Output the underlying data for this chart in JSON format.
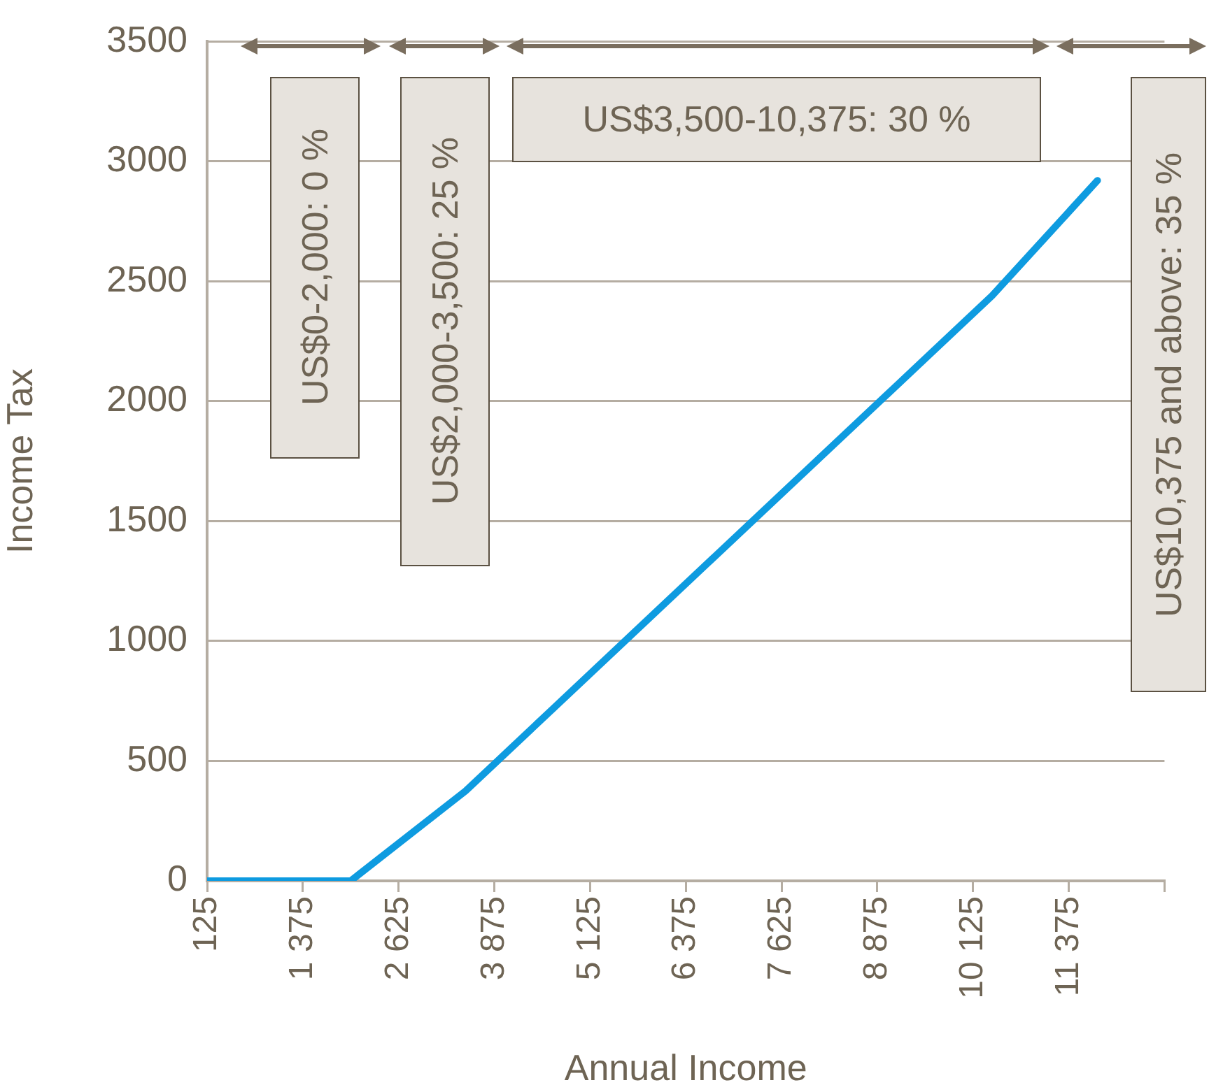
{
  "chart_data": {
    "type": "line",
    "xlabel": "Annual Income",
    "ylabel": "Income Tax",
    "x": [
      125,
      2000,
      3500,
      10375,
      11750
    ],
    "series": [
      {
        "color": "#0e9be0",
        "values": [
          0,
          0,
          375,
          2440,
          2920
        ]
      }
    ],
    "xlim": [
      125,
      12625
    ],
    "xticks": [
      125,
      {
        "value": 1375,
        "label": "1 375"
      },
      {
        "value": 2625,
        "label": "2 625"
      },
      {
        "value": 3875,
        "label": "3 875"
      },
      {
        "value": 5125,
        "label": "5 125"
      },
      {
        "value": 6375,
        "label": "6 375"
      },
      {
        "value": 7625,
        "label": "7 625"
      },
      {
        "value": 8875,
        "label": "8 875"
      },
      {
        "value": 10125,
        "label": "10 125"
      },
      {
        "value": 11375,
        "label": "11 375"
      },
      {
        "value": 12625,
        "label": null
      }
    ],
    "ylim": [
      0,
      3500
    ],
    "yticks": [
      0,
      500,
      1000,
      1500,
      2000,
      2500,
      3000,
      3500
    ],
    "grid": "y",
    "legend": false,
    "marker": "none",
    "line_style": "solid",
    "annotations": [
      "US$0-2,000: 0 %",
      "US$2,000-3,500: 25 %",
      "US$3,500-10,375: 30 %",
      "US$10,375 and above: 35 %"
    ]
  }
}
